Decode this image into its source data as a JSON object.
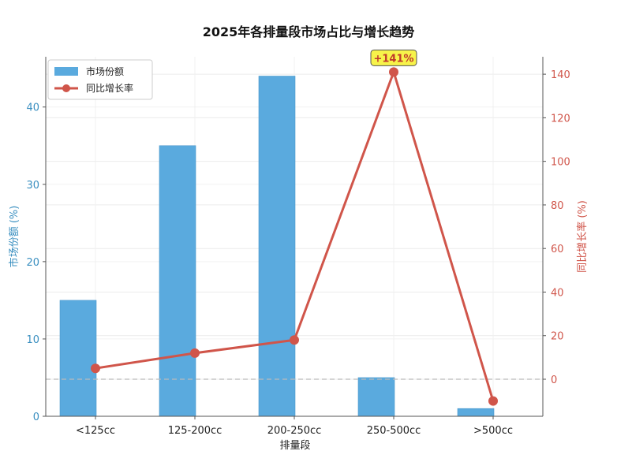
{
  "chart_data": {
    "type": "bar",
    "title": "2025年各排量段市场占比与增长趋势",
    "xlabel": "排量段",
    "ylabel": "市场份额 (%)",
    "y2label": "同比增长率 (%)",
    "categories": [
      "<125cc",
      "125-200cc",
      "200-250cc",
      "250-500cc",
      ">500cc"
    ],
    "series": [
      {
        "name": "市场份额",
        "type": "bar",
        "axis": "left",
        "values": [
          15,
          35,
          44,
          5,
          1
        ]
      },
      {
        "name": "同比增长率",
        "type": "line",
        "axis": "right",
        "values": [
          5,
          12,
          18,
          141,
          -10
        ]
      }
    ],
    "ylim": [
      0,
      46.5
    ],
    "y2lim": [
      -17,
      148
    ],
    "yticks": [
      0,
      10,
      20,
      30,
      40
    ],
    "y2ticks": [
      0,
      20,
      40,
      60,
      80,
      100,
      120,
      140
    ],
    "annotation": {
      "text": "+141%",
      "category": "250-500cc",
      "value": 141
    },
    "colors": {
      "bar": "#5aaade",
      "line": "#d0554a",
      "annotation_bg": "#f7f34a",
      "zero_line": "#bbbbbb"
    },
    "grid": true,
    "legend_position": "top-left"
  }
}
